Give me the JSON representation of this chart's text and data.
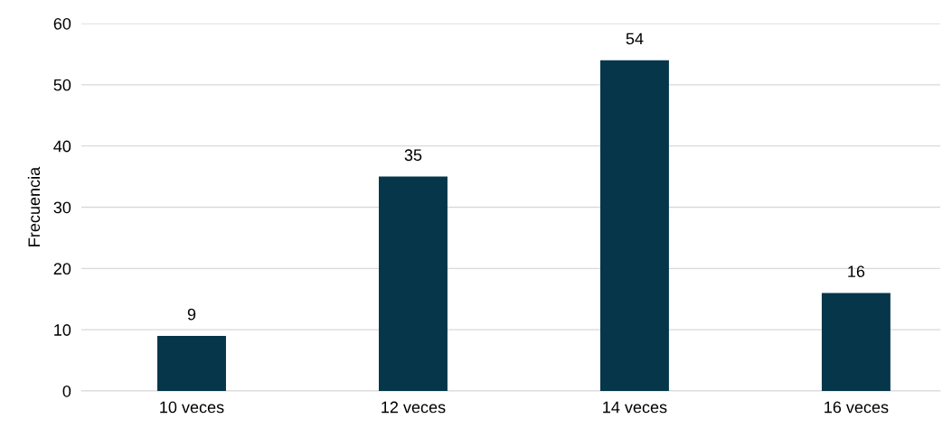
{
  "chart_data": {
    "type": "bar",
    "ylabel": "Frecuencia",
    "categories": [
      "10 veces",
      "12 veces",
      "14 veces",
      "16 veces"
    ],
    "values": [
      9,
      35,
      54,
      16
    ],
    "color": "#05364a",
    "ylim": [
      0,
      60
    ],
    "yticks": [
      0,
      10,
      20,
      30,
      40,
      50,
      60
    ],
    "grid": "y",
    "data_labels": true
  }
}
